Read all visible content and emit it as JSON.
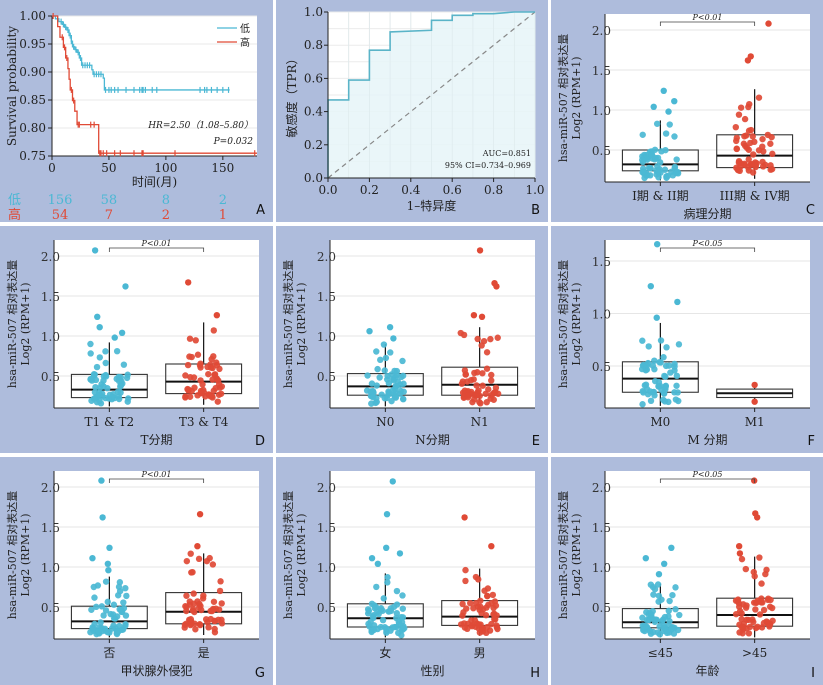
{
  "figure": {
    "background_color": "#aebcdc",
    "low_color": "#4bb8d4",
    "high_color": "#e04a36"
  },
  "chart_data": [
    {
      "panel": "A",
      "type": "line",
      "subtype": "kaplan-meier",
      "xlabel": "时间(月)",
      "ylabel": "Survival probability",
      "xlim": [
        0,
        180
      ],
      "ylim": [
        0.75,
        1.0
      ],
      "xticks": [
        "0",
        "50",
        "100",
        "150"
      ],
      "yticks": [
        "0.75",
        "0.80",
        "0.85",
        "0.90",
        "0.95",
        "1.00"
      ],
      "legend": {
        "placement": "top-right",
        "entries": [
          "低",
          "高"
        ]
      },
      "annotations": [
        "HR=2.50（1.08–5.80）",
        "P=0.032"
      ],
      "series": [
        {
          "name": "低",
          "color": "#4bb8d4",
          "steps": [
            [
              0,
              1.0
            ],
            [
              3,
              0.995
            ],
            [
              6,
              0.99
            ],
            [
              9,
              0.985
            ],
            [
              11,
              0.98
            ],
            [
              13,
              0.975
            ],
            [
              15,
              0.965
            ],
            [
              17,
              0.955
            ],
            [
              18,
              0.945
            ],
            [
              20,
              0.94
            ],
            [
              22,
              0.935
            ],
            [
              24,
              0.925
            ],
            [
              26,
              0.912
            ],
            [
              35,
              0.904
            ],
            [
              36,
              0.896
            ],
            [
              45,
              0.889
            ],
            [
              46,
              0.868
            ],
            [
              156,
              0.868
            ]
          ],
          "censor_x": [
            5,
            8,
            10,
            12,
            14,
            16,
            17,
            19,
            21,
            23,
            25,
            27,
            29,
            31,
            33,
            37,
            39,
            41,
            43,
            47,
            50,
            52,
            55,
            58,
            65,
            72,
            77,
            79,
            80,
            82,
            88,
            92,
            130,
            134,
            136,
            140,
            145,
            150,
            155
          ]
        },
        {
          "name": "高",
          "color": "#e04a36",
          "steps": [
            [
              0,
              1.0
            ],
            [
              5,
              0.981
            ],
            [
              7,
              0.962
            ],
            [
              10,
              0.944
            ],
            [
              12,
              0.925
            ],
            [
              14,
              0.906
            ],
            [
              15,
              0.887
            ],
            [
              16,
              0.868
            ],
            [
              18,
              0.849
            ],
            [
              20,
              0.83
            ],
            [
              22,
              0.806
            ],
            [
              40,
              0.806
            ],
            [
              41,
              0.755
            ],
            [
              180,
              0.755
            ]
          ],
          "censor_x": [
            1,
            9,
            11,
            13,
            17,
            19,
            23,
            24,
            34,
            37,
            42,
            43,
            45,
            48,
            55,
            60,
            72,
            79,
            80,
            108,
            178
          ]
        }
      ],
      "risk_table": {
        "rows": [
          {
            "label": "低",
            "color": "#4bb8d4",
            "values": [
              "156",
              "58",
              "8",
              "2"
            ]
          },
          {
            "label": "高",
            "color": "#e04a36",
            "values": [
              "54",
              "7",
              "2",
              "1"
            ]
          }
        ]
      }
    },
    {
      "panel": "B",
      "type": "line",
      "subtype": "roc",
      "xlabel": "1–特异度",
      "ylabel": "敏感度（TPR）",
      "xlim": [
        0,
        1
      ],
      "ylim": [
        0,
        1
      ],
      "xticks": [
        "0.0",
        "0.2",
        "0.4",
        "0.6",
        "0.8",
        "1.0"
      ],
      "yticks": [
        "0.0",
        "0.2",
        "0.4",
        "0.6",
        "0.8",
        "1.0"
      ],
      "grid": true,
      "annotations": [
        "AUC=0.851",
        "95% CI=0.734–0.969"
      ],
      "series": [
        {
          "name": "ROC",
          "color": "#5ab4c8",
          "points": [
            [
              0,
              0
            ],
            [
              0,
              0.47
            ],
            [
              0.1,
              0.47
            ],
            [
              0.1,
              0.59
            ],
            [
              0.2,
              0.59
            ],
            [
              0.2,
              0.77
            ],
            [
              0.3,
              0.77
            ],
            [
              0.3,
              0.88
            ],
            [
              0.5,
              0.89
            ],
            [
              0.5,
              0.95
            ],
            [
              0.6,
              0.95
            ],
            [
              0.6,
              0.98
            ],
            [
              0.7,
              0.98
            ],
            [
              0.7,
              0.99
            ],
            [
              0.8,
              0.99
            ],
            [
              0.9,
              1.0
            ],
            [
              1.0,
              1.0
            ]
          ]
        },
        {
          "name": "reference",
          "color": "#888888",
          "points": [
            [
              0,
              0
            ],
            [
              1,
              1
            ]
          ]
        }
      ]
    },
    {
      "panel": "C",
      "type": "box",
      "xlabel": "病理分期",
      "ylabel": "hsa-miR-507 相对表达量 Log2 (RPM+1)",
      "ylim": [
        0.1,
        2.2
      ],
      "yticks": [
        "0.5",
        "1.0",
        "1.5",
        "2.0"
      ],
      "categories": [
        "I期 & II期",
        "III期 & IV期"
      ],
      "significance": "P<0.01",
      "boxes": [
        {
          "q1": 0.24,
          "median": 0.32,
          "q3": 0.5,
          "whisker_low": 0.12,
          "whisker_high": 0.87,
          "outliers": [
            0.98,
            1.04,
            1.11,
            1.24
          ]
        },
        {
          "q1": 0.28,
          "median": 0.43,
          "q3": 0.69,
          "whisker_low": 0.14,
          "whisker_high": 1.26,
          "outliers": [
            1.62,
            1.67,
            2.08
          ]
        }
      ]
    },
    {
      "panel": "D",
      "type": "box",
      "xlabel": "T分期",
      "ylabel": "hsa-miR-507 相对表达量 Log2 (RPM+1)",
      "ylim": [
        0.1,
        2.2
      ],
      "yticks": [
        "0.5",
        "1.0",
        "1.5",
        "2.0"
      ],
      "categories": [
        "T1 & T2",
        "T3 & T4"
      ],
      "significance": "P<0.01",
      "boxes": [
        {
          "q1": 0.23,
          "median": 0.33,
          "q3": 0.52,
          "whisker_low": 0.12,
          "whisker_high": 0.92,
          "outliers": [
            0.98,
            1.04,
            1.11,
            1.24,
            1.62,
            2.07
          ]
        },
        {
          "q1": 0.28,
          "median": 0.43,
          "q3": 0.65,
          "whisker_low": 0.14,
          "whisker_high": 1.17,
          "outliers": [
            1.26,
            1.67
          ]
        }
      ]
    },
    {
      "panel": "E",
      "type": "box",
      "xlabel": "N分期",
      "ylabel": "hsa-miR-507 相对表达量 Log2 (RPM+1)",
      "ylim": [
        0.1,
        2.2
      ],
      "yticks": [
        "0.5",
        "1.0",
        "1.5",
        "2.0"
      ],
      "categories": [
        "N0",
        "N1"
      ],
      "significance": "",
      "boxes": [
        {
          "q1": 0.26,
          "median": 0.37,
          "q3": 0.53,
          "whisker_low": 0.12,
          "whisker_high": 0.9,
          "outliers": [
            0.97,
            1.06,
            1.11
          ]
        },
        {
          "q1": 0.26,
          "median": 0.39,
          "q3": 0.61,
          "whisker_low": 0.14,
          "whisker_high": 1.11,
          "outliers": [
            1.24,
            1.26,
            1.62,
            1.66,
            2.07
          ]
        }
      ]
    },
    {
      "panel": "F",
      "type": "box",
      "xlabel": "M 分期",
      "ylabel": "hsa-miR-507 相对表达量 Log2 (RPM+1)",
      "ylim": [
        0.1,
        1.7
      ],
      "yticks": [
        "0.5",
        "1.0",
        "1.5"
      ],
      "categories": [
        "M0",
        "M1"
      ],
      "significance": "P<0.05",
      "boxes": [
        {
          "q1": 0.25,
          "median": 0.38,
          "q3": 0.54,
          "whisker_low": 0.12,
          "whisker_high": 0.91,
          "outliers": [
            0.96,
            1.11,
            1.26,
            1.66
          ]
        },
        {
          "q1": 0.2,
          "median": 0.24,
          "q3": 0.28,
          "whisker_low": 0.16,
          "whisker_high": 0.32,
          "outliers": []
        }
      ]
    },
    {
      "panel": "G",
      "type": "box",
      "xlabel": "甲状腺外侵犯",
      "ylabel": "hsa-miR-507 相对表达量 Log2 (RPM+1)",
      "ylim": [
        0.1,
        2.2
      ],
      "yticks": [
        "0.5",
        "1.0",
        "1.5",
        "2.0"
      ],
      "categories": [
        "否",
        "是"
      ],
      "significance": "P<0.01",
      "boxes": [
        {
          "q1": 0.23,
          "median": 0.32,
          "q3": 0.51,
          "whisker_low": 0.12,
          "whisker_high": 0.88,
          "outliers": [
            0.96,
            1.04,
            1.11,
            1.24,
            1.62,
            2.08
          ]
        },
        {
          "q1": 0.29,
          "median": 0.44,
          "q3": 0.68,
          "whisker_low": 0.15,
          "whisker_high": 1.17,
          "outliers": [
            1.26,
            1.66
          ]
        }
      ]
    },
    {
      "panel": "H",
      "type": "box",
      "xlabel": "性别",
      "ylabel": "hsa-miR-507 相对表达量 Log2 (RPM+1)",
      "ylim": [
        0.1,
        2.2
      ],
      "yticks": [
        "0.5",
        "1.0",
        "1.5",
        "2.0"
      ],
      "categories": [
        "女",
        "男"
      ],
      "significance": "",
      "boxes": [
        {
          "q1": 0.25,
          "median": 0.36,
          "q3": 0.54,
          "whisker_low": 0.12,
          "whisker_high": 0.92,
          "outliers": [
            1.04,
            1.11,
            1.17,
            1.24,
            1.66,
            2.07
          ]
        },
        {
          "q1": 0.27,
          "median": 0.38,
          "q3": 0.58,
          "whisker_low": 0.14,
          "whisker_high": 0.98,
          "outliers": [
            1.26,
            1.62
          ]
        }
      ]
    },
    {
      "panel": "I",
      "type": "box",
      "xlabel": "年龄",
      "ylabel": "hsa-miR-507 相对表达量 Log2 (RPM+1)",
      "ylim": [
        0.1,
        2.2
      ],
      "yticks": [
        "0.5",
        "1.0",
        "1.5",
        "2.0"
      ],
      "categories": [
        "≤45",
        ">45"
      ],
      "significance": "P<0.05",
      "boxes": [
        {
          "q1": 0.24,
          "median": 0.31,
          "q3": 0.48,
          "whisker_low": 0.12,
          "whisker_high": 0.79,
          "outliers": [
            0.91,
            1.04,
            1.11,
            1.24
          ]
        },
        {
          "q1": 0.26,
          "median": 0.4,
          "q3": 0.61,
          "whisker_low": 0.12,
          "whisker_high": 1.13,
          "outliers": [
            1.17,
            1.26,
            1.62,
            1.67,
            2.08
          ]
        }
      ]
    }
  ]
}
